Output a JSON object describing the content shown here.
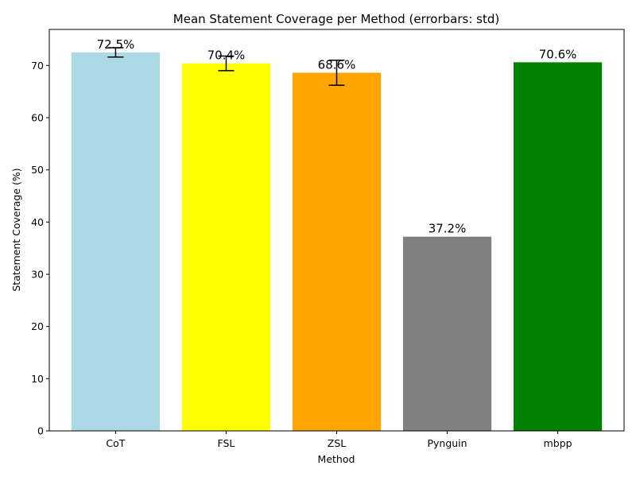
{
  "chart_data": {
    "type": "bar",
    "title": "Mean Statement Coverage per Method (errorbars: std)",
    "xlabel": "Method",
    "ylabel": "Statement Coverage (%)",
    "ylim": [
      0,
      76.9
    ],
    "yticks": [
      0,
      10,
      20,
      30,
      40,
      50,
      60,
      70
    ],
    "grid": false,
    "categories": [
      "CoT",
      "FSL",
      "ZSL",
      "Pynguin",
      "mbpp"
    ],
    "values": [
      72.5,
      70.4,
      68.6,
      37.2,
      70.6
    ],
    "errors": [
      0.9,
      1.4,
      2.4,
      null,
      null
    ],
    "data_labels": [
      "72.5%",
      "70.4%",
      "68.6%",
      "37.2%",
      "70.6%"
    ],
    "colors": [
      "#add8e6",
      "#ffff00",
      "#ffa500",
      "#808080",
      "#008000"
    ]
  }
}
